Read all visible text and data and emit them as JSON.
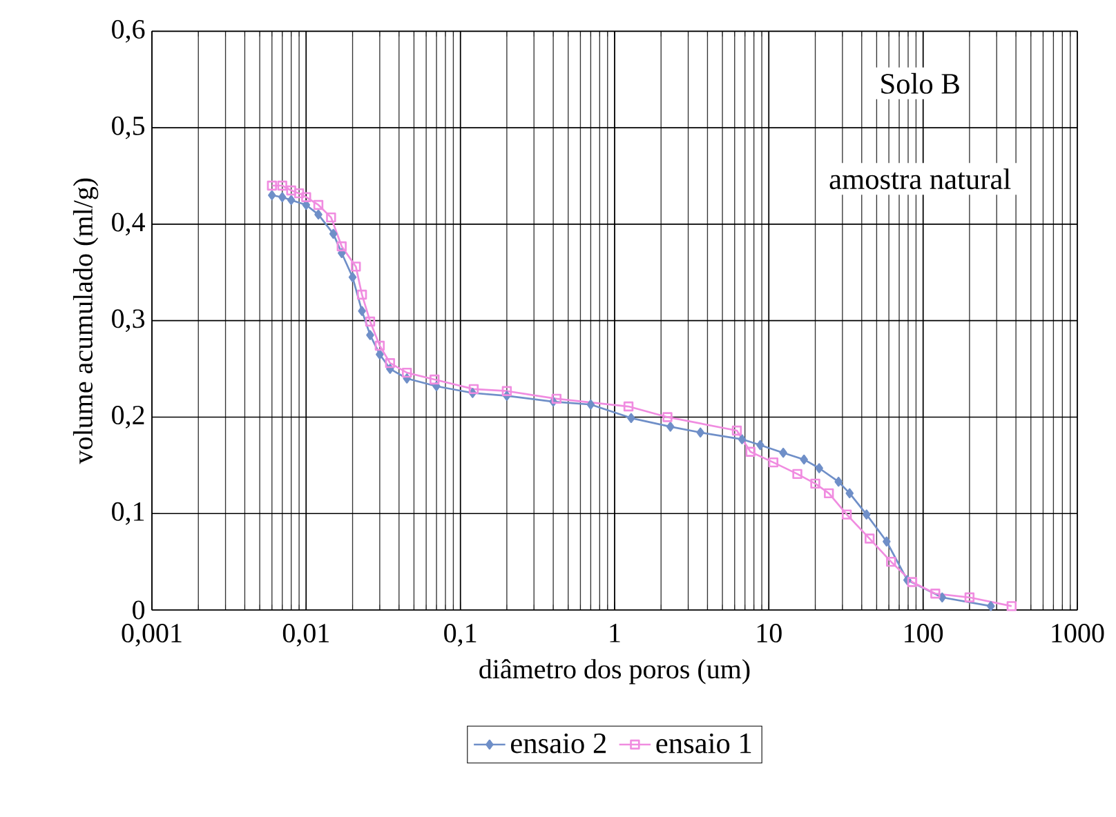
{
  "chart_data": {
    "type": "line",
    "xlabel": "diâmetro dos poros (um)",
    "ylabel": "volume acumulado (ml/g)",
    "annotations": [
      "Solo B",
      "amostra natural"
    ],
    "log": "x",
    "grid": true,
    "legend": "bottom",
    "xlim": [
      0.001,
      1000
    ],
    "ylim": [
      0,
      0.6
    ],
    "xticks": [
      {
        "value": 0.001,
        "label": "0,001"
      },
      {
        "value": 0.01,
        "label": "0,01"
      },
      {
        "value": 0.1,
        "label": "0,1"
      },
      1,
      10,
      100,
      1000
    ],
    "yticks": [
      0,
      {
        "value": 0.1,
        "label": "0,1"
      },
      {
        "value": 0.2,
        "label": "0,2"
      },
      {
        "value": 0.3,
        "label": "0,3"
      },
      {
        "value": 0.4,
        "label": "0,4"
      },
      {
        "value": 0.5,
        "label": "0,5"
      },
      {
        "value": 0.6,
        "label": "0,6"
      }
    ],
    "series": [
      {
        "name": "ensaio 2",
        "color": "#6f8fc8",
        "marker": "diamond",
        "x": [
          0.006,
          0.007,
          0.008,
          0.01,
          0.012,
          0.015,
          0.017,
          0.02,
          0.023,
          0.026,
          0.03,
          0.035,
          0.045,
          0.07,
          0.12,
          0.2,
          0.4,
          0.7,
          1.28,
          2.3,
          3.6,
          6.7,
          8.8,
          12.4,
          16.9,
          21.2,
          28.3,
          33.4,
          43,
          58,
          79,
          133,
          275
        ],
        "values": [
          0.43,
          0.428,
          0.425,
          0.42,
          0.41,
          0.39,
          0.37,
          0.345,
          0.31,
          0.285,
          0.265,
          0.25,
          0.24,
          0.232,
          0.225,
          0.222,
          0.216,
          0.213,
          0.199,
          0.19,
          0.184,
          0.177,
          0.171,
          0.163,
          0.156,
          0.147,
          0.133,
          0.121,
          0.099,
          0.071,
          0.031,
          0.013,
          0.004
        ]
      },
      {
        "name": "ensaio 1",
        "color": "#f08ce0",
        "marker": "square",
        "x": [
          0.006,
          0.007,
          0.008,
          0.009,
          0.01,
          0.012,
          0.0145,
          0.017,
          0.021,
          0.023,
          0.026,
          0.03,
          0.035,
          0.045,
          0.068,
          0.122,
          0.2,
          0.42,
          1.23,
          2.2,
          6.2,
          7.6,
          10.7,
          15.3,
          20,
          24.5,
          32,
          45,
          62,
          85,
          120,
          200,
          375
        ],
        "values": [
          0.44,
          0.44,
          0.435,
          0.432,
          0.428,
          0.42,
          0.407,
          0.377,
          0.356,
          0.327,
          0.299,
          0.274,
          0.256,
          0.246,
          0.239,
          0.229,
          0.227,
          0.219,
          0.211,
          0.2,
          0.186,
          0.164,
          0.153,
          0.141,
          0.131,
          0.121,
          0.099,
          0.074,
          0.05,
          0.029,
          0.017,
          0.013,
          0.004
        ]
      }
    ]
  }
}
